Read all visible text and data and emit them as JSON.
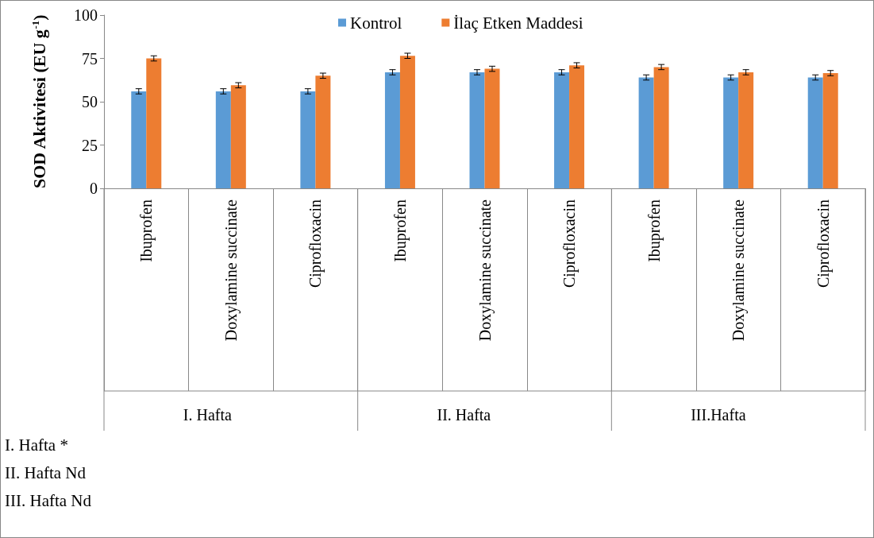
{
  "chart_data": {
    "type": "bar",
    "ylabel": "SOD Aktivitesi (EU g$^{-1}$)",
    "categories": [
      "Ibuprofen",
      "Doxylamine succinate",
      "Ciprofloxacin",
      "Ibuprofen",
      "Doxylamine succinate",
      "Ciprofloxacin",
      "Ibuprofen",
      "Doxylamine succinate",
      "Ciprofloxacin"
    ],
    "series": [
      {
        "name": "Kontrol",
        "color": "#5b9bd5",
        "values": [
          56,
          56,
          56,
          67,
          67,
          67,
          64,
          64,
          64
        ],
        "errors": [
          1.5,
          1.5,
          1.5,
          1.5,
          1.5,
          1.5,
          1.5,
          1.5,
          1.5
        ]
      },
      {
        "name": "İlaç Etken Maddesi",
        "color": "#ed7d31",
        "values": [
          75,
          59.5,
          65,
          76.5,
          69,
          71,
          70,
          67,
          66.5
        ],
        "errors": [
          1.5,
          1.5,
          1.5,
          1.5,
          1.5,
          1.5,
          1.5,
          1.5,
          1.5
        ]
      }
    ],
    "ylim": [
      0,
      100
    ],
    "yticks": [
      0,
      25,
      50,
      75,
      100
    ],
    "grid": false,
    "legend": "top",
    "annotations": [
      "I. Hafta",
      "II. Hafta",
      "III.Hafta",
      "I. Hafta *",
      "II. Hafta Nd",
      "III. Hafta Nd"
    ]
  }
}
